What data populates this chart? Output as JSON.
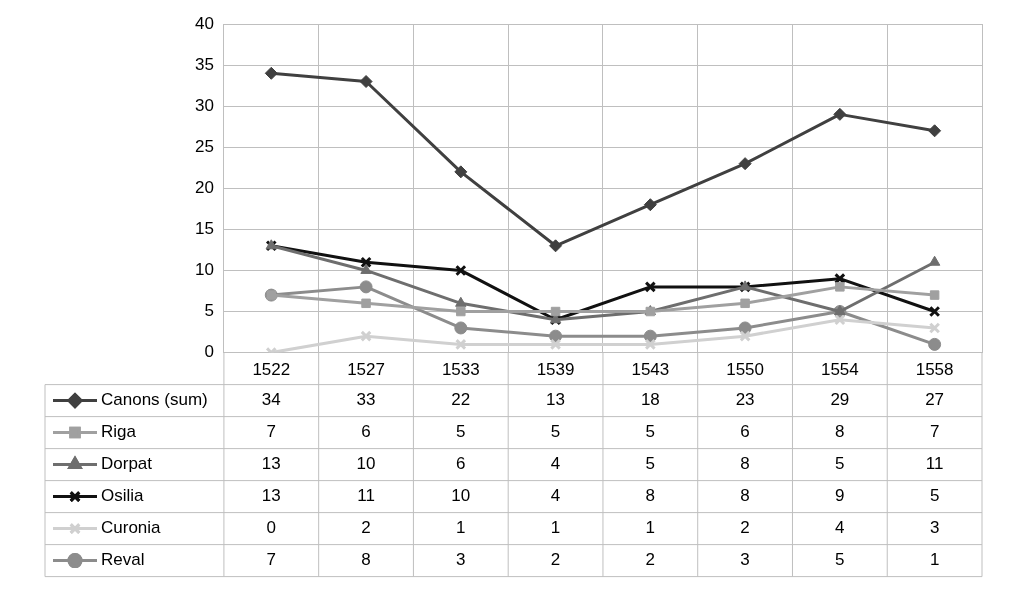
{
  "chart_data": {
    "type": "line",
    "categories": [
      "1522",
      "1527",
      "1533",
      "1539",
      "1543",
      "1550",
      "1554",
      "1558"
    ],
    "series": [
      {
        "name": "Canons (sum)",
        "color": "#404040",
        "marker": "diamond",
        "values": [
          34,
          33,
          22,
          13,
          18,
          23,
          29,
          27
        ]
      },
      {
        "name": "Riga",
        "color": "#a0a0a0",
        "marker": "square",
        "values": [
          7,
          6,
          5,
          5,
          5,
          6,
          8,
          7
        ]
      },
      {
        "name": "Dorpat",
        "color": "#6e6e6e",
        "marker": "triangle",
        "values": [
          13,
          10,
          6,
          4,
          5,
          8,
          5,
          11
        ]
      },
      {
        "name": "Osilia",
        "color": "#111111",
        "marker": "cross",
        "values": [
          13,
          11,
          10,
          4,
          8,
          8,
          9,
          5
        ]
      },
      {
        "name": "Curonia",
        "color": "#d0d0d0",
        "marker": "cross",
        "values": [
          0,
          2,
          1,
          1,
          1,
          2,
          4,
          3
        ]
      },
      {
        "name": "Reval",
        "color": "#8c8c8c",
        "marker": "circle",
        "values": [
          7,
          8,
          3,
          2,
          2,
          3,
          5,
          1
        ]
      }
    ],
    "ylim": [
      0,
      40
    ],
    "yticks": [
      0,
      5,
      10,
      15,
      20,
      25,
      30,
      35,
      40
    ],
    "grid": true,
    "legend": "bottom",
    "data_labels": true,
    "line_style": "solid"
  }
}
